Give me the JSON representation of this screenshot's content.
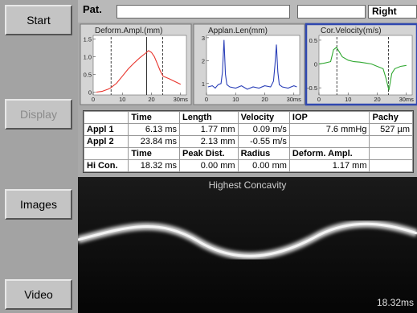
{
  "buttons": [
    "Start",
    "Display",
    "Images",
    "Video"
  ],
  "header": {
    "patient_label": "Pat.",
    "eye": "Right"
  },
  "charts": [
    {
      "type": "line",
      "title": "Deform.Ampl.(mm)",
      "xlim": [
        0,
        32
      ],
      "ylim": [
        -0.08,
        1.6
      ],
      "xticks": [
        0,
        10,
        20,
        {
          "value": 30,
          "label": "30ms"
        }
      ],
      "yticks": [
        0,
        0.5,
        {
          "value": 1,
          "label": "1.0"
        },
        1.5
      ],
      "markers": [
        6.13,
        23.84
      ],
      "highlight": 18.32,
      "series": [
        {
          "color": "#e8342c",
          "x": [
            1,
            3,
            5,
            6,
            8,
            10,
            12,
            14,
            16,
            18,
            19,
            20,
            21,
            22,
            23,
            24,
            26,
            28,
            30
          ],
          "values": [
            0,
            0.02,
            0.08,
            0.12,
            0.25,
            0.45,
            0.65,
            0.82,
            0.97,
            1.1,
            1.17,
            1.12,
            1.0,
            0.8,
            0.6,
            0.45,
            0.38,
            0.3,
            0.22
          ]
        }
      ]
    },
    {
      "type": "line",
      "title": "Applan.Len(mm)",
      "xlim": [
        0,
        32
      ],
      "ylim": [
        0.5,
        3.1
      ],
      "xticks": [
        0,
        10,
        20,
        {
          "value": 30,
          "label": "30ms"
        }
      ],
      "yticks": [
        1,
        2,
        3
      ],
      "series": [
        {
          "color": "#2a3fb8",
          "x": [
            0.5,
            2,
            3,
            4,
            5,
            5.5,
            6,
            6.5,
            7,
            8,
            10,
            12,
            14,
            16,
            18,
            20,
            22,
            23,
            23.5,
            24,
            24.5,
            25,
            26,
            28,
            30,
            31
          ],
          "values": [
            0.85,
            0.9,
            0.8,
            0.95,
            1.0,
            1.5,
            2.9,
            1.4,
            0.95,
            0.85,
            0.8,
            0.9,
            0.75,
            0.85,
            0.8,
            0.9,
            0.85,
            1.1,
            1.8,
            2.7,
            1.5,
            0.95,
            0.85,
            0.8,
            0.9,
            0.85
          ]
        }
      ]
    },
    {
      "type": "line",
      "title": "Cor.Velocity(m/s)",
      "xlim": [
        0,
        32
      ],
      "ylim": [
        -0.65,
        0.6
      ],
      "xticks": [
        0,
        10,
        20,
        {
          "value": 30,
          "label": "30ms"
        }
      ],
      "yticks": [
        0.5,
        0,
        -0.5
      ],
      "markers": [
        6.13,
        23.84
      ],
      "series": [
        {
          "color": "#2fa830",
          "x": [
            0,
            2,
            4,
            5,
            6,
            7,
            8,
            10,
            12,
            14,
            16,
            18,
            20,
            22,
            23,
            24,
            25,
            26,
            28,
            30
          ],
          "values": [
            0,
            0.02,
            0.05,
            0.3,
            0.35,
            0.25,
            0.15,
            0.08,
            0.05,
            0.04,
            0.02,
            0,
            -0.05,
            -0.1,
            -0.3,
            -0.55,
            -0.2,
            -0.1,
            -0.05,
            -0.03
          ]
        }
      ]
    }
  ],
  "table": {
    "blocks": [
      {
        "header": [
          "Time",
          "Length",
          "Velocity",
          "IOP",
          "Pachy"
        ],
        "rows": [
          {
            "label": "Appl 1",
            "cells": [
              "6.13 ms",
              "1.77 mm",
              "0.09 m/s",
              "7.6 mmHg",
              "527 µm"
            ]
          },
          {
            "label": "Appl 2",
            "cells": [
              "23.84 ms",
              "2.13 mm",
              "-0.55 m/s"
            ]
          }
        ]
      },
      {
        "header": [
          "Time",
          "Peak Dist.",
          "Radius",
          "Deform. Ampl."
        ],
        "rows": [
          {
            "label": "Hi Con.",
            "cells": [
              "18.32 ms",
              "0.00 mm",
              "0.00 mm",
              "1.17 mm"
            ]
          }
        ]
      }
    ]
  },
  "image": {
    "title": "Highest Concavity",
    "time": "18.32ms"
  }
}
